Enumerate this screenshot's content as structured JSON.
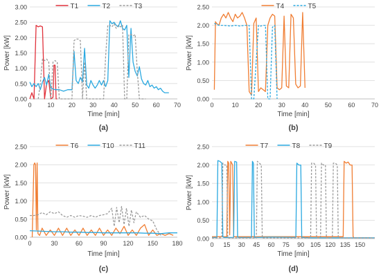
{
  "colors": {
    "T1": "#e0303a",
    "T2": "#29a8e0",
    "T3": "#9a9a9a",
    "T4": "#f07d32",
    "T5": "#29a8e0",
    "T6": "#f07d32",
    "T10": "#29a8e0",
    "T11": "#9a9a9a",
    "T7": "#f07d32",
    "T8": "#29a8e0",
    "T9": "#9a9a9a",
    "grid": "#d9d9d9",
    "axis": "#bfbfbf",
    "text": "#404040"
  },
  "chart_data": [
    {
      "type": "line",
      "panel_label": "(a)",
      "xlabel": "Time [min]",
      "ylabel": "Power [kW]",
      "xlim": [
        0,
        70
      ],
      "ylim": [
        0,
        3.0
      ],
      "xticks": [
        0,
        10,
        20,
        30,
        40,
        50,
        60,
        70
      ],
      "yticks": [
        0,
        0.5,
        1.0,
        1.5,
        2.0,
        2.5,
        3.0
      ],
      "ytick_labels": [
        "0.00",
        "0.50",
        "1.00",
        "1.50",
        "2.00",
        "2.50",
        "3.00"
      ],
      "grid": true,
      "legend": "top",
      "series": [
        {
          "name": "T1",
          "style": "solid",
          "color_key": "T1",
          "x": [
            0,
            1,
            2,
            3,
            4,
            5,
            6,
            7,
            8,
            9,
            10,
            11,
            11.5,
            12,
            12.5,
            13
          ],
          "y": [
            0,
            0.2,
            0,
            2.4,
            2.35,
            2.38,
            2.35,
            0,
            0.5,
            0.6,
            0,
            0.05,
            1.1,
            1.1,
            0,
            0
          ]
        },
        {
          "name": "T2",
          "style": "solid",
          "color_key": "T2",
          "x": [
            0,
            1,
            2,
            3,
            4,
            5,
            6,
            7,
            8,
            9,
            10,
            12,
            14,
            16,
            18,
            20,
            21,
            22,
            23,
            24,
            25,
            26,
            27,
            28,
            29,
            30,
            31,
            32,
            33,
            34,
            35,
            36,
            37,
            38,
            39,
            40,
            41,
            42,
            43,
            44,
            45,
            46,
            47,
            48,
            49,
            50,
            51,
            52,
            53,
            54,
            55,
            56,
            57,
            58,
            59,
            60,
            61,
            62,
            63,
            64,
            65,
            66
          ],
          "y": [
            0.55,
            0.4,
            0.5,
            0.4,
            0.5,
            0.3,
            0.55,
            0.7,
            0.45,
            0.8,
            0.35,
            0.3,
            0.3,
            0.25,
            0.3,
            0.3,
            1.55,
            0.6,
            0.5,
            0.7,
            0.55,
            1.65,
            0.45,
            0.35,
            0.6,
            0.45,
            0.35,
            0.45,
            0.6,
            0.45,
            0.6,
            0.4,
            0.6,
            2.55,
            2.45,
            2.5,
            2.4,
            2.35,
            2.55,
            2.3,
            2.25,
            2.4,
            0.7,
            2.3,
            1.2,
            0.9,
            0.75,
            1.05,
            0.65,
            0.5,
            0.45,
            0.6,
            0.4,
            0.45,
            0.35,
            0.4,
            0.3,
            0.35,
            0.25,
            0.2,
            0.2,
            0.2
          ]
        },
        {
          "name": "T3",
          "style": "dashed",
          "color_key": "T3",
          "x": [
            4,
            5,
            6,
            7,
            8,
            9,
            10,
            11,
            12,
            13,
            14,
            15,
            20,
            21,
            22,
            23,
            24,
            25,
            26,
            27,
            28,
            29,
            30,
            31,
            32,
            33,
            34,
            35,
            36,
            37,
            38,
            39,
            40,
            41,
            42,
            43,
            44,
            45,
            46,
            47,
            48,
            49,
            50,
            51,
            52,
            53,
            54,
            55
          ],
          "y": [
            0,
            0.5,
            1.3,
            1.25,
            1.3,
            1.2,
            0,
            1.2,
            1.25,
            1.2,
            0,
            0,
            0,
            1.9,
            1.95,
            1.95,
            1.9,
            0,
            1.2,
            0,
            0,
            0,
            0,
            0,
            0,
            0,
            0,
            0,
            1.4,
            2.4,
            2.4,
            2.35,
            2.45,
            2.3,
            2.4,
            2.35,
            2.4,
            0,
            0,
            2.1,
            2.1,
            2.05,
            2.1,
            0.9,
            0,
            0,
            0,
            0
          ]
        }
      ]
    },
    {
      "type": "line",
      "panel_label": "(b)",
      "xlabel": "Time [min]",
      "ylabel": "Power [kW]",
      "xlim": [
        0,
        70
      ],
      "ylim": [
        0,
        2.5
      ],
      "xticks": [
        0,
        10,
        20,
        30,
        40,
        50,
        60,
        70
      ],
      "yticks": [
        0,
        0.5,
        1.0,
        1.5,
        2.0,
        2.5
      ],
      "ytick_labels": [
        "0.00",
        "0.50",
        "1.00",
        "1.50",
        "2.00",
        "2.50"
      ],
      "grid": true,
      "legend": "top",
      "series": [
        {
          "name": "T4",
          "style": "solid",
          "color_key": "T4",
          "x": [
            1,
            1.5,
            2,
            3,
            4,
            5,
            6,
            7,
            8,
            9,
            10,
            11,
            12,
            13,
            14,
            15,
            16,
            17,
            18,
            19,
            20,
            21,
            22,
            23,
            24,
            25,
            26,
            27,
            28,
            29,
            30,
            31,
            32,
            33,
            34,
            35,
            36,
            37,
            38,
            39,
            40
          ],
          "y": [
            0.25,
            2.1,
            2.05,
            2.0,
            2.2,
            2.3,
            2.2,
            2.35,
            2.2,
            2.1,
            2.3,
            2.2,
            2.25,
            2.35,
            2.2,
            2.0,
            0.2,
            0.1,
            2.05,
            2.2,
            0.2,
            0.3,
            0.25,
            0.2,
            2.0,
            2.2,
            2.3,
            2.25,
            0.3,
            0.25,
            0.3,
            2.25,
            0.35,
            0.3,
            2.3,
            2.2,
            0.4,
            0.3,
            0.35,
            2.35,
            0.3
          ]
        },
        {
          "name": "T5",
          "style": "dashed",
          "color_key": "T5",
          "x": [
            1,
            3,
            5,
            8,
            10,
            12,
            14,
            16,
            17,
            18,
            20,
            21,
            22,
            23,
            24,
            25,
            26,
            27,
            28
          ],
          "y": [
            2.05,
            2.0,
            2.0,
            1.98,
            2.0,
            1.98,
            2.0,
            2.0,
            0,
            0,
            2.0,
            1.98,
            2.0,
            2.0,
            0,
            0,
            1.95,
            2.0,
            0
          ]
        }
      ]
    },
    {
      "type": "line",
      "panel_label": "(c)",
      "xlabel": "Time [min]",
      "ylabel": "Power [kW]",
      "xlim": [
        0,
        180
      ],
      "ylim": [
        0,
        2.5
      ],
      "xticks": [
        0,
        30,
        60,
        90,
        120,
        150,
        180
      ],
      "yticks": [
        0,
        0.5,
        1.0,
        1.5,
        2.0,
        2.5
      ],
      "ytick_labels": [
        "0.00",
        "0.50",
        "1.00",
        "1.50",
        "2.00",
        "2.50"
      ],
      "grid": true,
      "legend": "top",
      "series": [
        {
          "name": "T6",
          "style": "solid",
          "color_key": "T6",
          "x": [
            3,
            5,
            6,
            7,
            8,
            9,
            10,
            12,
            15,
            20,
            25,
            30,
            35,
            40,
            45,
            50,
            55,
            60,
            65,
            70,
            75,
            80,
            85,
            90,
            95,
            100,
            105,
            110,
            115,
            120,
            125,
            130,
            135,
            140,
            145,
            150,
            155,
            160,
            165,
            170,
            175
          ],
          "y": [
            0,
            2.0,
            2.05,
            2.0,
            0.2,
            2.05,
            0.1,
            0.05,
            0.25,
            0.05,
            0.2,
            0.05,
            0.25,
            0.05,
            0.25,
            0.05,
            0.2,
            0.05,
            0.25,
            0.05,
            0.2,
            0.05,
            0.25,
            0.05,
            0.2,
            0.05,
            0.25,
            0.1,
            0.3,
            0.05,
            0.2,
            0.05,
            0.25,
            0.35,
            0.05,
            0.2,
            0.05,
            0.1,
            0.05,
            0.1,
            0.05
          ]
        },
        {
          "name": "T10",
          "style": "solid",
          "color_key": "T10",
          "x": [
            0,
            10,
            20,
            30,
            40,
            50,
            60,
            70,
            80,
            90,
            100,
            110,
            120,
            130,
            140,
            150,
            160,
            170,
            180
          ],
          "y": [
            0.18,
            0.17,
            0.16,
            0.15,
            0.15,
            0.14,
            0.14,
            0.13,
            0.13,
            0.12,
            0.12,
            0.12,
            0.12,
            0.12,
            0.11,
            0.11,
            0.1,
            0.12,
            0.12
          ]
        },
        {
          "name": "T11",
          "style": "dashed",
          "color_key": "T11",
          "x": [
            0,
            5,
            10,
            15,
            20,
            25,
            30,
            35,
            40,
            45,
            50,
            55,
            60,
            65,
            70,
            75,
            80,
            85,
            90,
            95,
            100,
            103,
            106,
            109,
            112,
            115,
            118,
            121,
            124,
            127,
            130,
            135,
            140,
            145,
            150,
            155,
            160
          ],
          "y": [
            0.6,
            0.6,
            0.62,
            0.68,
            0.62,
            0.7,
            0.65,
            0.7,
            0.6,
            0.55,
            0.6,
            0.55,
            0.6,
            0.58,
            0.55,
            0.6,
            0.55,
            0.6,
            0.62,
            0.65,
            0.8,
            0.3,
            0.82,
            0.4,
            0.85,
            0.35,
            0.8,
            0.3,
            0.75,
            0.4,
            0.7,
            0.55,
            0.6,
            0.5,
            0.45,
            0.2,
            0.05
          ]
        }
      ]
    },
    {
      "type": "line",
      "panel_label": "(d)",
      "xlabel": "Time [min]",
      "ylabel": "Power [kW]",
      "xlim": [
        0,
        165
      ],
      "ylim": [
        0,
        2.5
      ],
      "xticks": [
        0,
        15,
        30,
        45,
        60,
        75,
        90,
        105,
        120,
        135,
        150
      ],
      "yticks": [
        0,
        0.5,
        1.0,
        1.5,
        2.0,
        2.5
      ],
      "ytick_labels": [
        "0.00",
        "0.50",
        "1.00",
        "1.50",
        "2.00",
        "2.50"
      ],
      "grid": true,
      "legend": "top",
      "series": [
        {
          "name": "T7",
          "style": "solid",
          "color_key": "T7",
          "x": [
            0,
            15,
            16,
            17,
            18,
            19,
            20,
            21,
            22,
            30,
            60,
            90,
            120,
            133,
            134,
            136,
            138,
            140,
            142,
            143,
            144,
            160
          ],
          "y": [
            0.05,
            0.05,
            2.1,
            2.05,
            0.1,
            2.1,
            2.05,
            2.0,
            0.05,
            0.05,
            0.05,
            0.05,
            0.05,
            0.05,
            2.1,
            2.05,
            2.08,
            2.0,
            2.0,
            0.05,
            0.02,
            0.02
          ]
        },
        {
          "name": "T8",
          "style": "solid",
          "color_key": "T8",
          "x": [
            0,
            5,
            6,
            8,
            10,
            11,
            12,
            22,
            23,
            25,
            26,
            27,
            40,
            41,
            42,
            43,
            60,
            85,
            86,
            88,
            90,
            91,
            92,
            100,
            165
          ],
          "y": [
            0.03,
            0.03,
            2.12,
            2.1,
            2.05,
            0.05,
            0.03,
            0.03,
            2.1,
            2.08,
            0.04,
            0.03,
            0.03,
            2.1,
            2.05,
            0.03,
            0.04,
            0.03,
            2.05,
            2.0,
            2.0,
            0.03,
            0.03,
            0.02,
            0.02
          ]
        },
        {
          "name": "T9",
          "style": "dashed",
          "color_key": "T9",
          "x": [
            0,
            10,
            11,
            13,
            15,
            16,
            45,
            46,
            48,
            50,
            51,
            100,
            101,
            103,
            105,
            106,
            110,
            111,
            113,
            115,
            116,
            122,
            123,
            125,
            127,
            128,
            165
          ],
          "y": [
            0.02,
            0.02,
            2.05,
            2.0,
            2.0,
            0.02,
            0.02,
            2.1,
            2.05,
            2.0,
            0.02,
            0.02,
            2.05,
            2.05,
            2.0,
            0.02,
            0.02,
            2.05,
            2.0,
            2.0,
            0.02,
            0.02,
            2.05,
            2.05,
            2.0,
            0.02,
            0.02
          ]
        }
      ]
    }
  ]
}
